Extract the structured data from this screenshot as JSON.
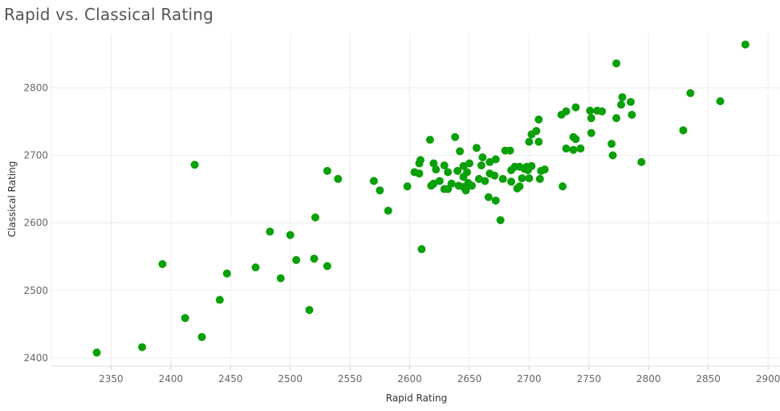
{
  "chart_data": {
    "type": "scatter",
    "title": "Rapid vs. Classical Rating",
    "xlabel": "Rapid Rating",
    "ylabel": "Classical Rating",
    "xlim": [
      2300,
      2910
    ],
    "ylim": [
      2388,
      2880
    ],
    "x_ticks": [
      2350,
      2400,
      2450,
      2500,
      2550,
      2600,
      2650,
      2700,
      2750,
      2800,
      2850,
      2900
    ],
    "y_ticks": [
      2400,
      2500,
      2600,
      2700,
      2800
    ],
    "grid": true,
    "marker_color": "#0aa00a",
    "points": [
      [
        2881,
        2864
      ],
      [
        2773,
        2836
      ],
      [
        2835,
        2792
      ],
      [
        2860,
        2780
      ],
      [
        2778,
        2786
      ],
      [
        2785,
        2779
      ],
      [
        2777,
        2775
      ],
      [
        2739,
        2771
      ],
      [
        2751,
        2766
      ],
      [
        2757,
        2766
      ],
      [
        2761,
        2765
      ],
      [
        2731,
        2765
      ],
      [
        2727,
        2760
      ],
      [
        2786,
        2760
      ],
      [
        2752,
        2755
      ],
      [
        2773,
        2755
      ],
      [
        2708,
        2753
      ],
      [
        2829,
        2737
      ],
      [
        2706,
        2736
      ],
      [
        2702,
        2731
      ],
      [
        2752,
        2733
      ],
      [
        2737,
        2727
      ],
      [
        2739,
        2724
      ],
      [
        2617,
        2723
      ],
      [
        2638,
        2727
      ],
      [
        2700,
        2720
      ],
      [
        2708,
        2720
      ],
      [
        2769,
        2717
      ],
      [
        2731,
        2710
      ],
      [
        2743,
        2710
      ],
      [
        2656,
        2711
      ],
      [
        2737,
        2708
      ],
      [
        2680,
        2707
      ],
      [
        2684,
        2707
      ],
      [
        2642,
        2706
      ],
      [
        2770,
        2700
      ],
      [
        2794,
        2690
      ],
      [
        2661,
        2697
      ],
      [
        2609,
        2693
      ],
      [
        2672,
        2694
      ],
      [
        2608,
        2688
      ],
      [
        2620,
        2688
      ],
      [
        2650,
        2688
      ],
      [
        2660,
        2685
      ],
      [
        2667,
        2690
      ],
      [
        2629,
        2685
      ],
      [
        2645,
        2684
      ],
      [
        2688,
        2683
      ],
      [
        2692,
        2683
      ],
      [
        2698,
        2683
      ],
      [
        2702,
        2684
      ],
      [
        2696,
        2680
      ],
      [
        2699,
        2678
      ],
      [
        2685,
        2678
      ],
      [
        2710,
        2677
      ],
      [
        2713,
        2679
      ],
      [
        2622,
        2679
      ],
      [
        2640,
        2677
      ],
      [
        2608,
        2673
      ],
      [
        2604,
        2675
      ],
      [
        2632,
        2675
      ],
      [
        2648,
        2675
      ],
      [
        2667,
        2673
      ],
      [
        2671,
        2670
      ],
      [
        2645,
        2668
      ],
      [
        2658,
        2665
      ],
      [
        2694,
        2666
      ],
      [
        2700,
        2666
      ],
      [
        2678,
        2665
      ],
      [
        2709,
        2665
      ],
      [
        2685,
        2661
      ],
      [
        2625,
        2662
      ],
      [
        2663,
        2662
      ],
      [
        2620,
        2658
      ],
      [
        2635,
        2658
      ],
      [
        2649,
        2659
      ],
      [
        2618,
        2655
      ],
      [
        2641,
        2655
      ],
      [
        2645,
        2653
      ],
      [
        2652,
        2655
      ],
      [
        2692,
        2654
      ],
      [
        2690,
        2651
      ],
      [
        2629,
        2650
      ],
      [
        2632,
        2650
      ],
      [
        2647,
        2648
      ],
      [
        2728,
        2654
      ],
      [
        2598,
        2654
      ],
      [
        2570,
        2662
      ],
      [
        2540,
        2665
      ],
      [
        2531,
        2677
      ],
      [
        2575,
        2648
      ],
      [
        2666,
        2638
      ],
      [
        2672,
        2633
      ],
      [
        2582,
        2618
      ],
      [
        2521,
        2608
      ],
      [
        2676,
        2604
      ],
      [
        2483,
        2587
      ],
      [
        2500,
        2582
      ],
      [
        2610,
        2561
      ],
      [
        2505,
        2545
      ],
      [
        2520,
        2547
      ],
      [
        2393,
        2539
      ],
      [
        2531,
        2536
      ],
      [
        2471,
        2534
      ],
      [
        2447,
        2525
      ],
      [
        2492,
        2518
      ],
      [
        2441,
        2486
      ],
      [
        2516,
        2471
      ],
      [
        2412,
        2459
      ],
      [
        2426,
        2431
      ],
      [
        2376,
        2416
      ],
      [
        2338,
        2408
      ],
      [
        2420,
        2686
      ]
    ]
  }
}
